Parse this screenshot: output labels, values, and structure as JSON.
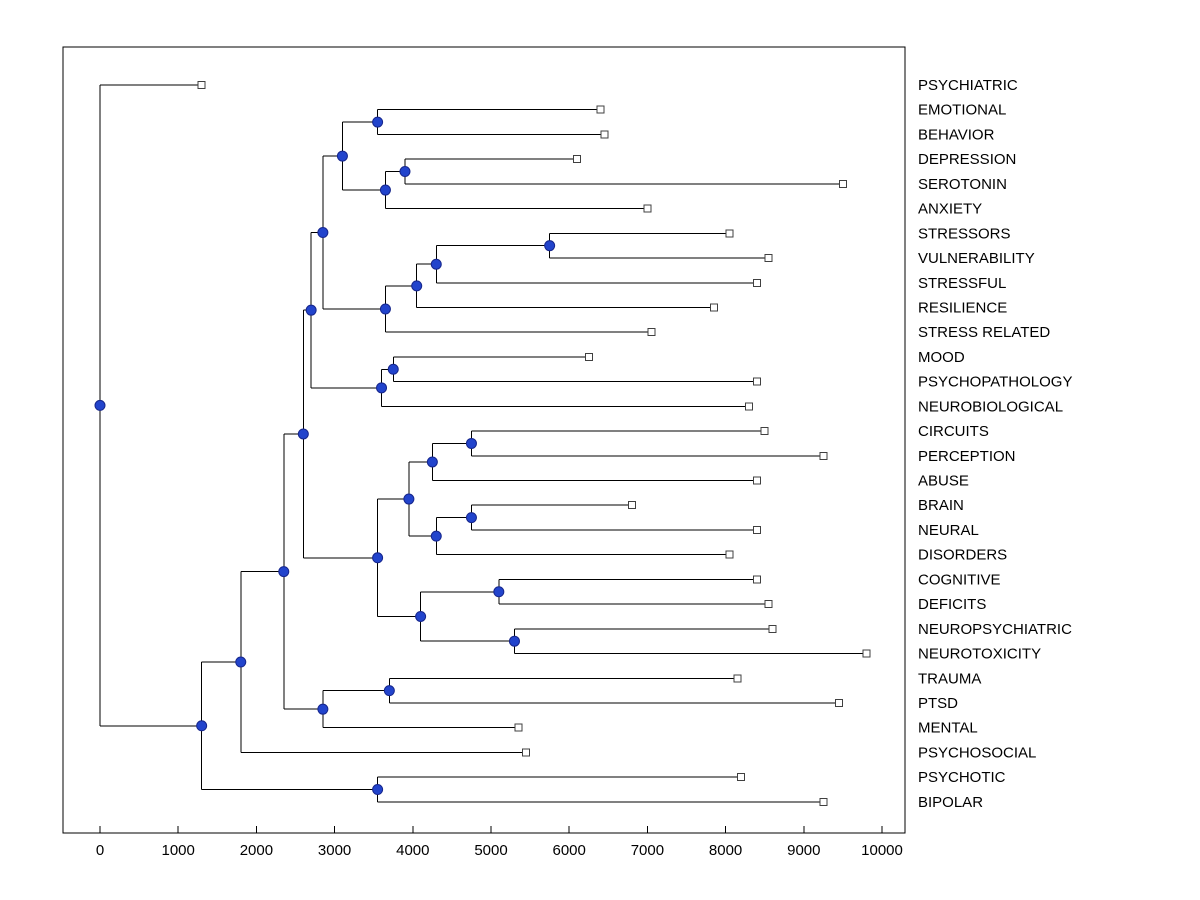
{
  "figure": {
    "background": "#ffffff",
    "border_color": "#000000"
  },
  "chart_data": {
    "type": "dendrogram",
    "title": "",
    "xlabel": "",
    "ylabel": "",
    "orientation": "left-to-right",
    "grid": false,
    "legend": "none",
    "x_axis": {
      "min": 0,
      "max": 10000,
      "tick_interval": 1000,
      "tick_labels": [
        "0",
        "1000",
        "2000",
        "3000",
        "4000",
        "5000",
        "6000",
        "7000",
        "8000",
        "9000",
        "10000"
      ]
    },
    "colors": {
      "branch": "#000000",
      "internal_node_fill": "#2244cc",
      "internal_node_edge": "#16268c",
      "leaf_marker_fill": "#ffffff",
      "leaf_marker_edge": "#404040",
      "text": "#000000"
    },
    "leaves": [
      {
        "label": "PSYCHIATRIC",
        "distance": 1300
      },
      {
        "label": "EMOTIONAL",
        "distance": 6400
      },
      {
        "label": "BEHAVIOR",
        "distance": 6450
      },
      {
        "label": "DEPRESSION",
        "distance": 6100
      },
      {
        "label": "SEROTONIN",
        "distance": 9500
      },
      {
        "label": "ANXIETY",
        "distance": 7000
      },
      {
        "label": "STRESSORS",
        "distance": 8050
      },
      {
        "label": "VULNERABILITY",
        "distance": 8550
      },
      {
        "label": "STRESSFUL",
        "distance": 8400
      },
      {
        "label": "RESILIENCE",
        "distance": 7850
      },
      {
        "label": "STRESS RELATED",
        "distance": 7050
      },
      {
        "label": "MOOD",
        "distance": 6250
      },
      {
        "label": "PSYCHOPATHOLOGY",
        "distance": 8400
      },
      {
        "label": "NEUROBIOLOGICAL",
        "distance": 8300
      },
      {
        "label": "CIRCUITS",
        "distance": 8500
      },
      {
        "label": "PERCEPTION",
        "distance": 9250
      },
      {
        "label": "ABUSE",
        "distance": 8400
      },
      {
        "label": "BRAIN",
        "distance": 6800
      },
      {
        "label": "NEURAL",
        "distance": 8400
      },
      {
        "label": "DISORDERS",
        "distance": 8050
      },
      {
        "label": "COGNITIVE",
        "distance": 8400
      },
      {
        "label": "DEFICITS",
        "distance": 8550
      },
      {
        "label": "NEUROPSYCHIATRIC",
        "distance": 8600
      },
      {
        "label": "NEUROTOXICITY",
        "distance": 9800
      },
      {
        "label": "TRAUMA",
        "distance": 8150
      },
      {
        "label": "PTSD",
        "distance": 9450
      },
      {
        "label": "MENTAL",
        "distance": 5350
      },
      {
        "label": "PSYCHOSOCIAL",
        "distance": 5450
      },
      {
        "label": "PSYCHOTIC",
        "distance": 8200
      },
      {
        "label": "BIPOLAR",
        "distance": 9250
      }
    ],
    "internal_nodes": [
      {
        "id": "root",
        "distance": 0,
        "children": [
          "PSYCHIATRIC",
          "n-main"
        ]
      },
      {
        "id": "n-main",
        "distance": 1300,
        "children": [
          "n-upper-main",
          "n-psychotic-bipolar"
        ]
      },
      {
        "id": "n-upper-main",
        "distance": 1800,
        "children": [
          "n-core",
          "PSYCHOSOCIAL"
        ]
      },
      {
        "id": "n-core",
        "distance": 2350,
        "children": [
          "n-mid-core",
          "n-trauma-mental"
        ]
      },
      {
        "id": "n-mid-core",
        "distance": 2600,
        "children": [
          "n-top-half",
          "n-brain-cog"
        ]
      },
      {
        "id": "n-top-half",
        "distance": 2700,
        "children": [
          "n-emo-stress",
          "n-mood-grp"
        ]
      },
      {
        "id": "n-emo-stress",
        "distance": 2850,
        "children": [
          "n-emo-grp",
          "n-stress-grp"
        ]
      },
      {
        "id": "n-emo-grp",
        "distance": 3100,
        "children": [
          "n-emo-beh",
          "n-dep-ser-anx"
        ]
      },
      {
        "id": "n-emo-beh",
        "distance": 3550,
        "children": [
          "EMOTIONAL",
          "BEHAVIOR"
        ]
      },
      {
        "id": "n-dep-ser-anx",
        "distance": 3650,
        "children": [
          "n-dep-ser",
          "ANXIETY"
        ]
      },
      {
        "id": "n-dep-ser",
        "distance": 3900,
        "children": [
          "DEPRESSION",
          "SEROTONIN"
        ]
      },
      {
        "id": "n-stress-grp",
        "distance": 3650,
        "children": [
          "n-stress1",
          "STRESS RELATED"
        ]
      },
      {
        "id": "n-stress1",
        "distance": 4050,
        "children": [
          "n-stress2",
          "RESILIENCE"
        ]
      },
      {
        "id": "n-stress2",
        "distance": 4300,
        "children": [
          "n-stressors-vuln",
          "STRESSFUL"
        ]
      },
      {
        "id": "n-stressors-vuln",
        "distance": 5750,
        "children": [
          "STRESSORS",
          "VULNERABILITY"
        ]
      },
      {
        "id": "n-mood-grp",
        "distance": 3600,
        "children": [
          "n-mood-psych",
          "NEUROBIOLOGICAL"
        ]
      },
      {
        "id": "n-mood-psych",
        "distance": 3750,
        "children": [
          "MOOD",
          "PSYCHOPATHOLOGY"
        ]
      },
      {
        "id": "n-brain-cog",
        "distance": 3550,
        "children": [
          "n-brain-grp",
          "n-cog-grp"
        ]
      },
      {
        "id": "n-brain-grp",
        "distance": 3950,
        "children": [
          "n-circ-abuse",
          "n-brain-dis"
        ]
      },
      {
        "id": "n-circ-abuse",
        "distance": 4250,
        "children": [
          "n-circ-perc",
          "ABUSE"
        ]
      },
      {
        "id": "n-circ-perc",
        "distance": 4750,
        "children": [
          "CIRCUITS",
          "PERCEPTION"
        ]
      },
      {
        "id": "n-brain-dis",
        "distance": 4300,
        "children": [
          "n-brain-neural",
          "DISORDERS"
        ]
      },
      {
        "id": "n-brain-neural",
        "distance": 4750,
        "children": [
          "BRAIN",
          "NEURAL"
        ]
      },
      {
        "id": "n-cog-grp",
        "distance": 4100,
        "children": [
          "n-cog-def",
          "n-neuro-tox"
        ]
      },
      {
        "id": "n-cog-def",
        "distance": 5100,
        "children": [
          "COGNITIVE",
          "DEFICITS"
        ]
      },
      {
        "id": "n-neuro-tox",
        "distance": 5300,
        "children": [
          "NEUROPSYCHIATRIC",
          "NEUROTOXICITY"
        ]
      },
      {
        "id": "n-trauma-mental",
        "distance": 2850,
        "children": [
          "n-trauma-ptsd",
          "MENTAL"
        ]
      },
      {
        "id": "n-trauma-ptsd",
        "distance": 3700,
        "children": [
          "TRAUMA",
          "PTSD"
        ]
      },
      {
        "id": "n-psychotic-bipolar",
        "distance": 3550,
        "children": [
          "PSYCHOTIC",
          "BIPOLAR"
        ]
      }
    ]
  }
}
